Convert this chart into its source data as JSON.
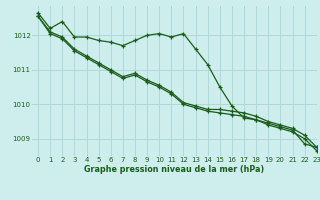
{
  "background_color": "#ceeeed",
  "grid_color": "#b0d8d8",
  "line_color": "#1a5c1a",
  "xlabel": "Graphe pression niveau de la mer (hPa)",
  "xlim": [
    -0.5,
    23
  ],
  "ylim": [
    1008.5,
    1012.85
  ],
  "yticks": [
    1009,
    1010,
    1011,
    1012
  ],
  "xticks": [
    0,
    1,
    2,
    3,
    4,
    5,
    6,
    7,
    8,
    9,
    10,
    11,
    12,
    13,
    14,
    15,
    16,
    17,
    18,
    19,
    20,
    21,
    22,
    23
  ],
  "series": [
    [
      1012.65,
      1012.2,
      1012.4,
      1011.95,
      1011.95,
      1011.85,
      1011.8,
      1011.7,
      1011.85,
      1012.0,
      1012.05,
      1011.95,
      1012.05,
      1011.6,
      1011.15,
      1010.5,
      1009.95,
      1009.6,
      1009.55,
      1009.45,
      1009.35,
      1009.25,
      1008.85,
      1008.75
    ],
    [
      1012.55,
      1012.1,
      1011.95,
      1011.6,
      1011.4,
      1011.2,
      1011.0,
      1010.8,
      1010.9,
      1010.7,
      1010.55,
      1010.35,
      1010.05,
      1009.95,
      1009.85,
      1009.85,
      1009.8,
      1009.75,
      1009.65,
      1009.5,
      1009.4,
      1009.3,
      1009.1,
      1008.75
    ],
    [
      1012.55,
      1012.05,
      1011.9,
      1011.55,
      1011.35,
      1011.15,
      1010.95,
      1010.75,
      1010.85,
      1010.65,
      1010.5,
      1010.3,
      1010.0,
      1009.9,
      1009.8,
      1009.75,
      1009.7,
      1009.65,
      1009.55,
      1009.4,
      1009.3,
      1009.2,
      1009.0,
      1008.65
    ]
  ]
}
